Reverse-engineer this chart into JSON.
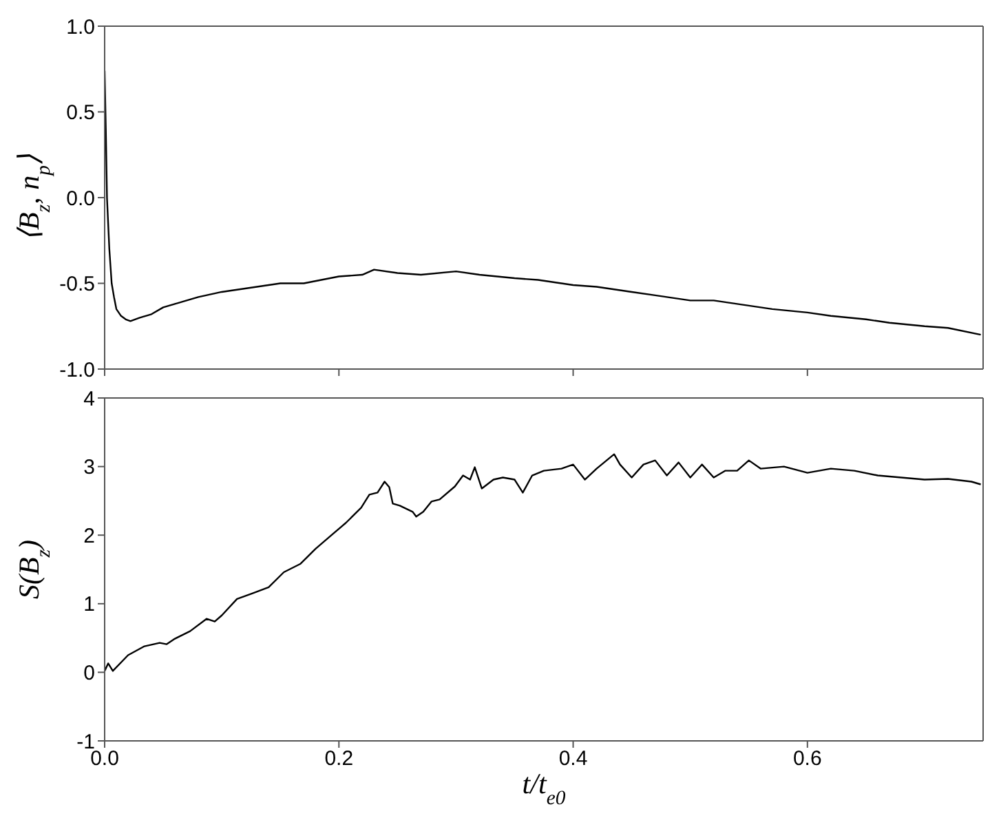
{
  "chart_data": [
    {
      "type": "line",
      "ylabel": "⟨B$_{z}$, n$_{p}$⟩",
      "color": "#000000",
      "tick_labels": "y",
      "xlim": [
        0,
        0.75
      ],
      "xticks": [
        0,
        0.2,
        0.4,
        0.6
      ],
      "ylim": [
        -1,
        1
      ],
      "yticks": [
        {
          "value": -1,
          "label": "-1.0"
        },
        -0.5,
        {
          "value": 0,
          "label": "0.0"
        },
        0.5,
        {
          "value": 1,
          "label": "1.0"
        }
      ],
      "x": [
        0,
        0.001,
        0.002,
        0.004,
        0.006,
        0.008,
        0.01,
        0.014,
        0.018,
        0.022,
        0.026,
        0.03,
        0.04,
        0.05,
        0.06,
        0.07,
        0.08,
        0.1,
        0.12,
        0.15,
        0.17,
        0.2,
        0.22,
        0.23,
        0.25,
        0.27,
        0.3,
        0.32,
        0.35,
        0.37,
        0.4,
        0.42,
        0.45,
        0.47,
        0.5,
        0.52,
        0.55,
        0.57,
        0.6,
        0.62,
        0.65,
        0.67,
        0.7,
        0.72,
        0.748
      ],
      "values": [
        0.74,
        0.4,
        0.0,
        -0.3,
        -0.5,
        -0.58,
        -0.65,
        -0.69,
        -0.71,
        -0.72,
        -0.71,
        -0.7,
        -0.68,
        -0.64,
        -0.62,
        -0.6,
        -0.58,
        -0.55,
        -0.53,
        -0.5,
        -0.5,
        -0.46,
        -0.45,
        -0.42,
        -0.44,
        -0.45,
        -0.43,
        -0.45,
        -0.47,
        -0.48,
        -0.51,
        -0.52,
        -0.55,
        -0.57,
        -0.6,
        -0.6,
        -0.63,
        -0.65,
        -0.67,
        -0.69,
        -0.71,
        -0.73,
        -0.75,
        -0.76,
        -0.8
      ]
    },
    {
      "type": "line",
      "ylabel": "S(B$_{z}$)",
      "xlabel": "t/t$_{e0}$",
      "color": "#000000",
      "xlim": [
        0,
        0.75
      ],
      "xticks": [
        {
          "value": 0,
          "label": "0.0"
        },
        0.2,
        0.4,
        0.6
      ],
      "ylim": [
        -1,
        4
      ],
      "yticks": [
        -1,
        0,
        1,
        2,
        3,
        4
      ],
      "x": [
        0,
        0.003,
        0.007,
        0.02,
        0.034,
        0.047,
        0.053,
        0.06,
        0.073,
        0.087,
        0.094,
        0.1,
        0.113,
        0.126,
        0.14,
        0.153,
        0.167,
        0.18,
        0.193,
        0.206,
        0.219,
        0.226,
        0.233,
        0.239,
        0.243,
        0.246,
        0.252,
        0.263,
        0.266,
        0.272,
        0.279,
        0.286,
        0.299,
        0.306,
        0.312,
        0.316,
        0.322,
        0.332,
        0.34,
        0.35,
        0.357,
        0.365,
        0.375,
        0.39,
        0.4,
        0.41,
        0.42,
        0.435,
        0.44,
        0.45,
        0.46,
        0.47,
        0.48,
        0.49,
        0.5,
        0.51,
        0.52,
        0.53,
        0.54,
        0.55,
        0.56,
        0.58,
        0.6,
        0.62,
        0.64,
        0.66,
        0.68,
        0.7,
        0.72,
        0.74,
        0.748
      ],
      "values": [
        0.02,
        0.13,
        0.02,
        0.25,
        0.38,
        0.43,
        0.41,
        0.49,
        0.6,
        0.78,
        0.74,
        0.83,
        1.07,
        1.15,
        1.24,
        1.46,
        1.58,
        1.8,
        1.99,
        2.18,
        2.4,
        2.59,
        2.62,
        2.78,
        2.7,
        2.46,
        2.43,
        2.34,
        2.27,
        2.34,
        2.49,
        2.52,
        2.71,
        2.87,
        2.81,
        2.99,
        2.68,
        2.81,
        2.84,
        2.81,
        2.62,
        2.87,
        2.94,
        2.97,
        3.03,
        2.81,
        2.97,
        3.18,
        3.03,
        2.84,
        3.03,
        3.09,
        2.87,
        3.06,
        2.84,
        3.03,
        2.84,
        2.94,
        2.94,
        3.09,
        2.97,
        3.0,
        2.91,
        2.97,
        2.94,
        2.87,
        2.84,
        2.81,
        2.82,
        2.78,
        2.74
      ]
    }
  ]
}
